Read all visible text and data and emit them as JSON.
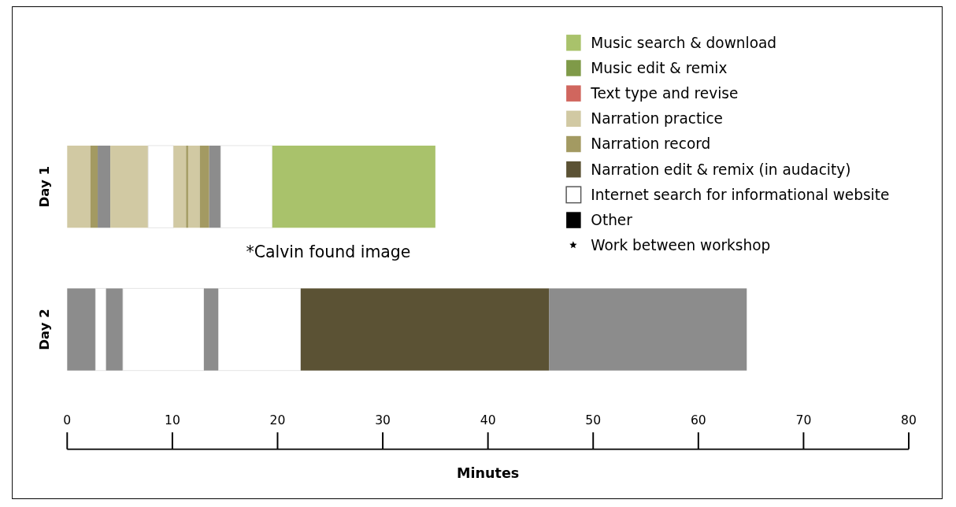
{
  "chart_data": {
    "type": "bar",
    "orientation": "horizontal",
    "stacked": true,
    "xlabel": "Minutes",
    "categories": [
      "Day 1",
      "Day 2"
    ],
    "xlim": [
      0,
      80
    ],
    "xticks": [
      0,
      10,
      20,
      30,
      40,
      50,
      60,
      70,
      80
    ],
    "legend": "top right",
    "annotations": [
      "*Calvin found image"
    ],
    "series": [
      {
        "name": "Music search & download",
        "color": "#a9c26b",
        "values": [
          null,
          null
        ]
      },
      {
        "name": "Music edit & remix",
        "color": "#7f9a48",
        "values": [
          null,
          null
        ]
      },
      {
        "name": "Text type and revise",
        "color": "#d0665e",
        "values": [
          null,
          null
        ]
      },
      {
        "name": "Narration practice",
        "color": "#d1c9a3",
        "values": [
          null,
          null
        ]
      },
      {
        "name": "Narration record",
        "color": "#a39a62",
        "values": [
          null,
          null
        ]
      },
      {
        "name": "Narration edit & remix (in audacity)",
        "color": "#5b5234",
        "values": [
          null,
          null
        ]
      },
      {
        "name": "Internet search for informational website",
        "color": "#ffffff",
        "values": [
          null,
          null
        ]
      },
      {
        "name": "Other",
        "color": "#000000",
        "values": [
          null,
          null
        ]
      },
      {
        "name": "Work between workshop",
        "type": "scatter",
        "marker": "star",
        "color": "#000000",
        "values": [
          null,
          null
        ]
      },
      {
        "colors": [
          "#d1c9a3",
          "#8c8c8c"
        ],
        "values": [
          2.2,
          2.7
        ]
      },
      {
        "colors": [
          "#a39a62",
          "#ffffff"
        ],
        "values": [
          0.7,
          1.0
        ]
      },
      {
        "colors": [
          "#8c8c8c",
          "#8c8c8c"
        ],
        "values": [
          1.2,
          1.6
        ]
      },
      {
        "colors": [
          "#d1c9a3",
          "#ffffff"
        ],
        "values": [
          3.6,
          7.7
        ]
      },
      {
        "colors": [
          "#ffffff",
          "#8c8c8c"
        ],
        "values": [
          2.4,
          1.4
        ]
      },
      {
        "colors": [
          "#d1c9a3",
          "#ffffff"
        ],
        "values": [
          1.2,
          7.8
        ]
      },
      {
        "colors": [
          "#a39a62",
          "#5b5234"
        ],
        "values": [
          0.2,
          23.6
        ]
      },
      {
        "colors": [
          "#d1c9a3",
          "#8c8c8c"
        ],
        "values": [
          1.1,
          18.8
        ]
      },
      {
        "colors": [
          "#a39a62",
          null
        ],
        "values": [
          0.9,
          null
        ]
      },
      {
        "colors": [
          "#8c8c8c",
          null
        ],
        "values": [
          1.1,
          null
        ]
      },
      {
        "colors": [
          "#ffffff",
          null
        ],
        "values": [
          4.9,
          null
        ]
      },
      {
        "colors": [
          "#a9c26b",
          null
        ],
        "values": [
          15.5,
          null
        ]
      }
    ]
  }
}
